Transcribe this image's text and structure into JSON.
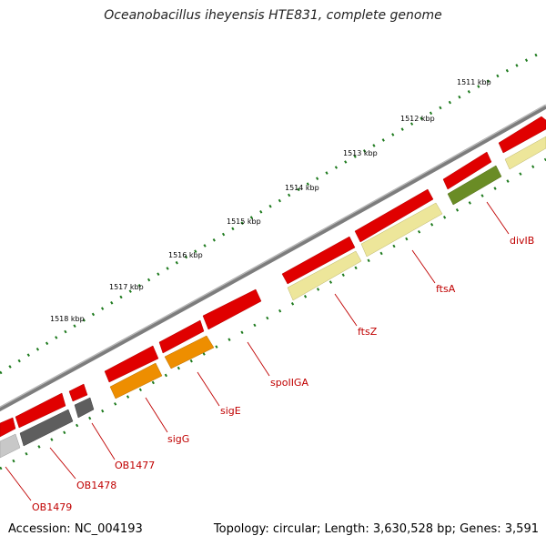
{
  "title": "Oceanobacillus iheyensis HTE831, complete genome",
  "accession": "Accession: NC_004193",
  "summary": "Topology: circular; Length: 3,630,528 bp; Genes: 3,591",
  "kbp_labels": [
    "1511 kbp",
    "1512 kbp",
    "1513 kbp",
    "1514 kbp",
    "1515 kbp",
    "1516 kbp",
    "1517 kbp",
    "1518 kbp"
  ],
  "gene_labels": [
    "divIB",
    "ftsA",
    "ftsZ",
    "spoIIGA",
    "sigE",
    "sigG",
    "OB1477",
    "OB1478",
    "OB1479"
  ],
  "colors": {
    "backbone": "#8c8c8c",
    "cds_red": "#e00000",
    "rna_yellow": "#ede69a",
    "orange": "#ee8e00",
    "dark_gray": "#5e5e5e",
    "light_gray": "#c8c8c8",
    "olive": "#6a8c25",
    "tick_green": "#1d7a1d",
    "label_red": "#c00000"
  }
}
